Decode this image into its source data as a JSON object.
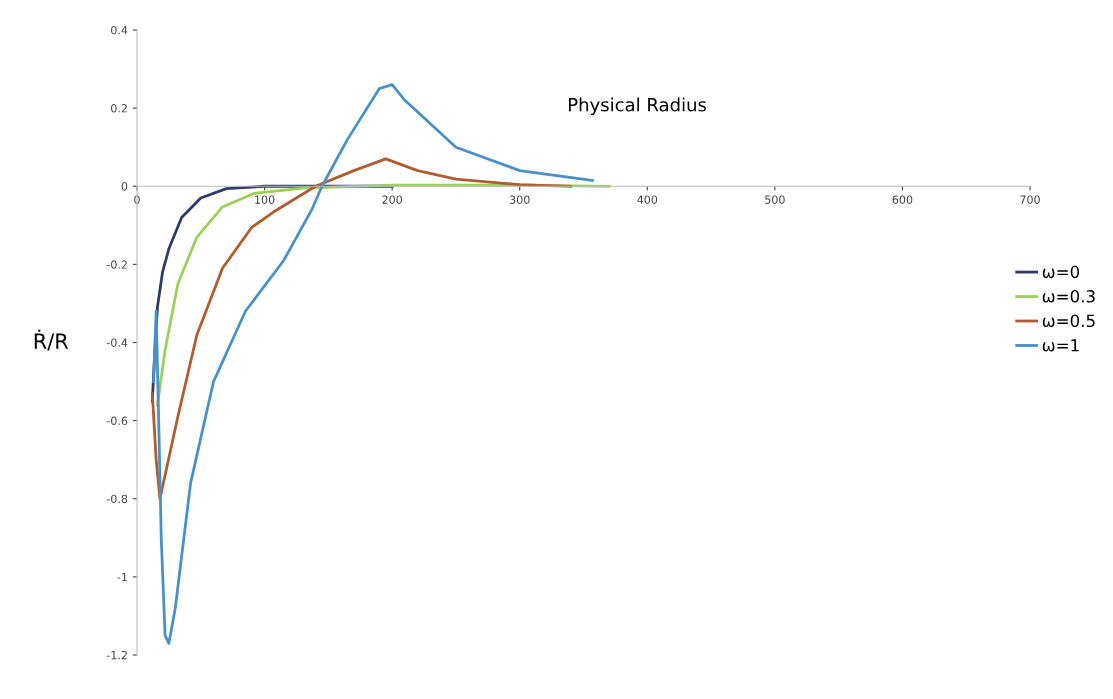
{
  "chart_data": {
    "type": "line",
    "title": "Physical Radius",
    "ylabel": "Ṙ/R",
    "xlim": [
      0,
      700
    ],
    "ylim": [
      -1.2,
      0.4
    ],
    "xticks": [
      0,
      100,
      200,
      300,
      400,
      500,
      600,
      700
    ],
    "yticks": [
      -1.2,
      -1,
      -0.8,
      -0.6,
      -0.4,
      -0.2,
      0,
      0.2,
      0.4
    ],
    "grid": false,
    "legend": "right",
    "marker": "none",
    "line_style": "solid",
    "series": [
      {
        "name": "ω=0",
        "color": "#2e3a6e",
        "x": [
          12,
          14,
          16,
          20,
          25,
          35,
          50,
          70,
          100,
          150,
          200
        ],
        "values": [
          -0.55,
          -0.42,
          -0.31,
          -0.22,
          -0.16,
          -0.08,
          -0.03,
          -0.006,
          0,
          0,
          0
        ]
      },
      {
        "name": "ω=0.3",
        "color": "#9bd05a",
        "x": [
          16,
          22,
          32,
          47,
          67,
          92,
          130,
          200,
          300,
          370
        ],
        "values": [
          -0.56,
          -0.42,
          -0.25,
          -0.13,
          -0.053,
          -0.018,
          -0.005,
          0.003,
          0.003,
          0
        ]
      },
      {
        "name": "ω=0.5",
        "color": "#b05c30",
        "x": [
          12,
          15,
          18,
          32,
          47,
          67,
          90,
          107,
          140,
          170,
          195,
          220,
          250,
          300,
          340
        ],
        "values": [
          -0.53,
          -0.7,
          -0.8,
          -0.59,
          -0.38,
          -0.21,
          -0.105,
          -0.066,
          0,
          0.04,
          0.07,
          0.04,
          0.018,
          0.004,
          0
        ]
      },
      {
        "name": "ω=1",
        "color": "#4a90c8",
        "x": [
          13,
          15,
          17,
          19,
          22,
          25,
          30,
          42,
          60,
          85,
          115,
          137,
          145,
          165,
          190,
          200,
          210,
          250,
          300,
          357
        ],
        "values": [
          -0.5,
          -0.32,
          -0.6,
          -0.9,
          -1.15,
          -1.17,
          -1.08,
          -0.76,
          -0.5,
          -0.32,
          -0.19,
          -0.06,
          0,
          0.12,
          0.25,
          0.26,
          0.22,
          0.1,
          0.04,
          0.015
        ]
      }
    ]
  }
}
